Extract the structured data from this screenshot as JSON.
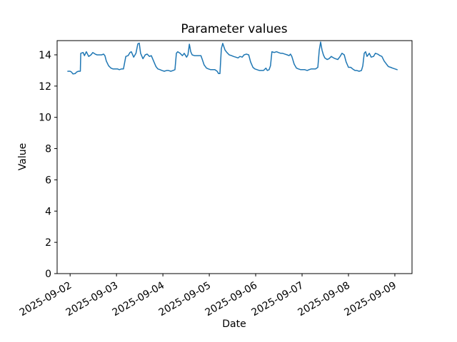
{
  "figure": {
    "background": "#ffffff",
    "border": "none"
  },
  "chart_data": {
    "type": "line",
    "title": "Parameter values",
    "xlabel": "Date",
    "ylabel": "Value",
    "legend": "none",
    "grid": false,
    "line_color": "#1f77b4",
    "axis_color": "#000000",
    "x_unit": "days since first x tick",
    "x_tick_labels": [
      "2025-09-02",
      "2025-09-03",
      "2025-09-04",
      "2025-09-05",
      "2025-09-06",
      "2025-09-07",
      "2025-09-08",
      "2025-09-09"
    ],
    "x_tick_rotation_deg": 30,
    "y_ticks": [
      0,
      2,
      4,
      6,
      8,
      10,
      12,
      14
    ],
    "xlim": [
      -0.28,
      7.37
    ],
    "ylim": [
      0,
      14.91
    ],
    "points": [
      [
        -0.05,
        12.95
      ],
      [
        0.0,
        12.95
      ],
      [
        0.03,
        12.9
      ],
      [
        0.06,
        12.78
      ],
      [
        0.11,
        12.8
      ],
      [
        0.14,
        12.9
      ],
      [
        0.18,
        12.95
      ],
      [
        0.22,
        12.95
      ],
      [
        0.23,
        14.1
      ],
      [
        0.28,
        14.15
      ],
      [
        0.31,
        13.95
      ],
      [
        0.35,
        14.2
      ],
      [
        0.4,
        13.9
      ],
      [
        0.45,
        14.0
      ],
      [
        0.49,
        14.15
      ],
      [
        0.54,
        14.05
      ],
      [
        0.58,
        14.0
      ],
      [
        0.63,
        14.0
      ],
      [
        0.68,
        14.0
      ],
      [
        0.72,
        14.05
      ],
      [
        0.75,
        13.95
      ],
      [
        0.78,
        13.6
      ],
      [
        0.83,
        13.3
      ],
      [
        0.88,
        13.15
      ],
      [
        0.92,
        13.1
      ],
      [
        0.97,
        13.1
      ],
      [
        1.02,
        13.1
      ],
      [
        1.06,
        13.05
      ],
      [
        1.11,
        13.1
      ],
      [
        1.15,
        13.1
      ],
      [
        1.2,
        13.9
      ],
      [
        1.25,
        13.95
      ],
      [
        1.29,
        14.15
      ],
      [
        1.32,
        14.2
      ],
      [
        1.37,
        13.85
      ],
      [
        1.42,
        14.1
      ],
      [
        1.46,
        14.7
      ],
      [
        1.49,
        14.75
      ],
      [
        1.52,
        14.1
      ],
      [
        1.57,
        13.75
      ],
      [
        1.62,
        14.0
      ],
      [
        1.66,
        14.05
      ],
      [
        1.71,
        13.9
      ],
      [
        1.75,
        13.95
      ],
      [
        1.8,
        13.6
      ],
      [
        1.85,
        13.25
      ],
      [
        1.89,
        13.1
      ],
      [
        1.94,
        13.05
      ],
      [
        1.98,
        13.0
      ],
      [
        2.03,
        12.95
      ],
      [
        2.08,
        13.0
      ],
      [
        2.12,
        13.0
      ],
      [
        2.17,
        12.95
      ],
      [
        2.22,
        13.0
      ],
      [
        2.26,
        13.05
      ],
      [
        2.29,
        14.1
      ],
      [
        2.32,
        14.2
      ],
      [
        2.37,
        14.1
      ],
      [
        2.42,
        13.95
      ],
      [
        2.46,
        14.1
      ],
      [
        2.51,
        13.85
      ],
      [
        2.54,
        14.0
      ],
      [
        2.57,
        14.68
      ],
      [
        2.6,
        14.2
      ],
      [
        2.63,
        14.0
      ],
      [
        2.68,
        13.95
      ],
      [
        2.72,
        13.95
      ],
      [
        2.77,
        13.95
      ],
      [
        2.82,
        13.95
      ],
      [
        2.85,
        13.7
      ],
      [
        2.89,
        13.35
      ],
      [
        2.94,
        13.15
      ],
      [
        2.98,
        13.1
      ],
      [
        3.03,
        13.05
      ],
      [
        3.08,
        13.05
      ],
      [
        3.12,
        13.05
      ],
      [
        3.17,
        12.95
      ],
      [
        3.2,
        12.8
      ],
      [
        3.23,
        12.8
      ],
      [
        3.26,
        14.4
      ],
      [
        3.29,
        14.73
      ],
      [
        3.34,
        14.3
      ],
      [
        3.38,
        14.15
      ],
      [
        3.43,
        14.0
      ],
      [
        3.48,
        13.95
      ],
      [
        3.52,
        13.9
      ],
      [
        3.57,
        13.85
      ],
      [
        3.62,
        13.8
      ],
      [
        3.66,
        13.9
      ],
      [
        3.71,
        13.85
      ],
      [
        3.75,
        14.0
      ],
      [
        3.8,
        14.05
      ],
      [
        3.85,
        14.0
      ],
      [
        3.89,
        13.55
      ],
      [
        3.94,
        13.2
      ],
      [
        3.98,
        13.1
      ],
      [
        4.03,
        13.05
      ],
      [
        4.08,
        13.0
      ],
      [
        4.12,
        13.0
      ],
      [
        4.17,
        13.0
      ],
      [
        4.22,
        13.15
      ],
      [
        4.25,
        13.0
      ],
      [
        4.29,
        13.05
      ],
      [
        4.32,
        13.3
      ],
      [
        4.35,
        14.2
      ],
      [
        4.4,
        14.15
      ],
      [
        4.45,
        14.2
      ],
      [
        4.49,
        14.15
      ],
      [
        4.54,
        14.1
      ],
      [
        4.58,
        14.1
      ],
      [
        4.63,
        14.05
      ],
      [
        4.68,
        14.0
      ],
      [
        4.72,
        13.95
      ],
      [
        4.75,
        14.05
      ],
      [
        4.78,
        13.9
      ],
      [
        4.83,
        13.4
      ],
      [
        4.88,
        13.15
      ],
      [
        4.92,
        13.1
      ],
      [
        4.97,
        13.05
      ],
      [
        5.02,
        13.05
      ],
      [
        5.06,
        13.05
      ],
      [
        5.11,
        13.0
      ],
      [
        5.15,
        13.05
      ],
      [
        5.2,
        13.1
      ],
      [
        5.25,
        13.1
      ],
      [
        5.29,
        13.1
      ],
      [
        5.34,
        13.2
      ],
      [
        5.37,
        14.3
      ],
      [
        5.4,
        14.82
      ],
      [
        5.43,
        14.3
      ],
      [
        5.46,
        14.0
      ],
      [
        5.49,
        13.8
      ],
      [
        5.54,
        13.7
      ],
      [
        5.58,
        13.75
      ],
      [
        5.63,
        13.9
      ],
      [
        5.68,
        13.8
      ],
      [
        5.72,
        13.75
      ],
      [
        5.77,
        13.7
      ],
      [
        5.82,
        13.9
      ],
      [
        5.86,
        14.1
      ],
      [
        5.91,
        14.0
      ],
      [
        5.95,
        13.55
      ],
      [
        6.0,
        13.2
      ],
      [
        6.05,
        13.2
      ],
      [
        6.09,
        13.1
      ],
      [
        6.14,
        13.0
      ],
      [
        6.18,
        13.0
      ],
      [
        6.23,
        12.95
      ],
      [
        6.28,
        13.0
      ],
      [
        6.31,
        13.3
      ],
      [
        6.34,
        14.1
      ],
      [
        6.37,
        14.2
      ],
      [
        6.4,
        13.9
      ],
      [
        6.45,
        14.1
      ],
      [
        6.49,
        13.85
      ],
      [
        6.54,
        13.9
      ],
      [
        6.58,
        14.1
      ],
      [
        6.63,
        14.05
      ],
      [
        6.68,
        13.95
      ],
      [
        6.72,
        13.9
      ],
      [
        6.77,
        13.6
      ],
      [
        6.82,
        13.4
      ],
      [
        6.86,
        13.25
      ],
      [
        6.91,
        13.2
      ],
      [
        6.95,
        13.15
      ],
      [
        7.0,
        13.1
      ],
      [
        7.05,
        13.05
      ]
    ]
  }
}
